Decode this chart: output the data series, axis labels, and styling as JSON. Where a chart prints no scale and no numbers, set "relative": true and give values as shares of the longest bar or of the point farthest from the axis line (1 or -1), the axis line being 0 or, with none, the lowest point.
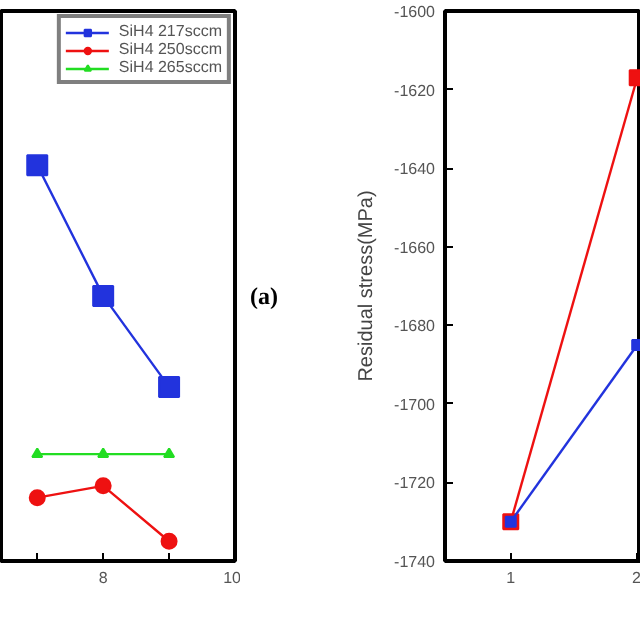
{
  "chart_data": [
    {
      "type": "line",
      "relative": true,
      "x": [
        7,
        8,
        9
      ],
      "xlim": [
        6.45,
        10
      ],
      "xticks": [
        {
          "value": 7,
          "label": null
        },
        8,
        {
          "value": 9,
          "label": null
        },
        {
          "value": 10,
          "label": "10"
        }
      ],
      "tick_labels": "x",
      "legend": "top right",
      "annotations": [
        "(a)"
      ],
      "series": [
        {
          "name": "SiH4 217sccm",
          "color": "#2233dd",
          "marker": "square",
          "values": [
            1,
            0.67,
            0.44
          ]
        },
        {
          "name": "SiH4 250sccm",
          "color": "#ee1111",
          "marker": "circle",
          "values": [
            0.16,
            0.19,
            0.05
          ]
        },
        {
          "name": "SiH4 265sccm",
          "color": "#22dd22",
          "marker": "triangle",
          "values": [
            0.27,
            0.27,
            0.27
          ]
        }
      ]
    },
    {
      "type": "line",
      "x": [
        1,
        2
      ],
      "xlim": [
        0.48,
        2.03
      ],
      "xticks": [
        1,
        2
      ],
      "ylim": [
        -1740,
        -1600
      ],
      "yticks": [
        -1740,
        -1720,
        -1700,
        -1680,
        -1660,
        -1640,
        -1620,
        -1600
      ],
      "ylabel": "Residual stress(MPa)",
      "marker": "square",
      "series": [
        {
          "color": "#ee1111",
          "values": [
            -1730,
            -1617
          ]
        },
        {
          "color": "#2233dd",
          "values": [
            -1730,
            -1685
          ]
        }
      ]
    }
  ]
}
